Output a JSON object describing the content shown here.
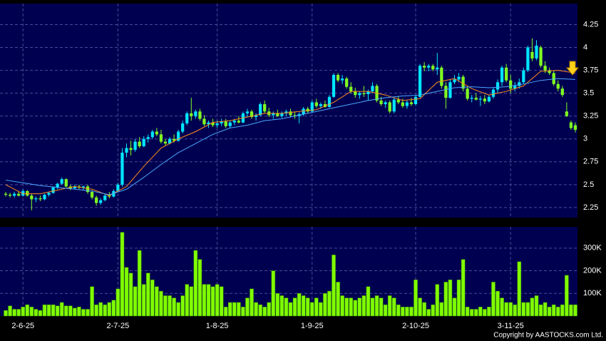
{
  "chart_data": {
    "type": "candlestick",
    "categories": [
      null,
      null,
      null,
      null,
      "2-6-25",
      null,
      null,
      null,
      null,
      null,
      null,
      null,
      null,
      null,
      null,
      null,
      null,
      null,
      null,
      null,
      null,
      null,
      null,
      null,
      null,
      null,
      "2-7-25",
      null,
      null,
      null,
      null,
      null,
      null,
      null,
      null,
      null,
      null,
      null,
      null,
      null,
      null,
      null,
      null,
      null,
      null,
      null,
      null,
      null,
      null,
      "1-8-25",
      null,
      null,
      null,
      null,
      null,
      null,
      null,
      null,
      null,
      null,
      null,
      null,
      null,
      null,
      null,
      null,
      null,
      null,
      null,
      null,
      null,
      "1-9-25",
      null,
      null,
      null,
      null,
      null,
      null,
      null,
      null,
      null,
      null,
      null,
      null,
      null,
      null,
      null,
      null,
      null,
      null,
      null,
      null,
      null,
      null,
      null,
      "2-10-25",
      null,
      null,
      null,
      null,
      null,
      null,
      null,
      null,
      null,
      null,
      null,
      null,
      null,
      null,
      null,
      null,
      null,
      null,
      null,
      null,
      null,
      "3-11-25",
      null,
      null,
      null,
      null,
      null,
      null,
      null,
      null,
      null,
      null,
      null,
      null,
      null,
      null,
      null
    ],
    "ohlc": [
      [
        2.4,
        2.42,
        2.37,
        2.39
      ],
      [
        2.39,
        2.41,
        2.36,
        2.38
      ],
      [
        2.38,
        2.42,
        2.36,
        2.4
      ],
      [
        2.4,
        2.43,
        2.37,
        2.38
      ],
      [
        2.38,
        2.45,
        2.37,
        2.43
      ],
      [
        2.43,
        2.44,
        2.37,
        2.38
      ],
      [
        2.38,
        2.4,
        2.22,
        2.34
      ],
      [
        2.34,
        2.37,
        2.31,
        2.35
      ],
      [
        2.35,
        2.38,
        2.32,
        2.34
      ],
      [
        2.34,
        2.4,
        2.33,
        2.39
      ],
      [
        2.39,
        2.42,
        2.37,
        2.41
      ],
      [
        2.41,
        2.48,
        2.4,
        2.47
      ],
      [
        2.47,
        2.52,
        2.45,
        2.51
      ],
      [
        2.51,
        2.58,
        2.5,
        2.56
      ],
      [
        2.56,
        2.57,
        2.47,
        2.48
      ],
      [
        2.48,
        2.5,
        2.44,
        2.46
      ],
      [
        2.46,
        2.5,
        2.45,
        2.48
      ],
      [
        2.48,
        2.5,
        2.45,
        2.47
      ],
      [
        2.47,
        2.49,
        2.44,
        2.48
      ],
      [
        2.48,
        2.5,
        2.4,
        2.42
      ],
      [
        2.42,
        2.44,
        2.34,
        2.36
      ],
      [
        2.36,
        2.38,
        2.27,
        2.3
      ],
      [
        2.3,
        2.35,
        2.28,
        2.33
      ],
      [
        2.33,
        2.4,
        2.32,
        2.38
      ],
      [
        2.38,
        2.42,
        2.35,
        2.37
      ],
      [
        2.37,
        2.45,
        2.36,
        2.43
      ],
      [
        2.43,
        2.52,
        2.42,
        2.5
      ],
      [
        2.5,
        2.9,
        2.48,
        2.85
      ],
      [
        2.85,
        2.95,
        2.8,
        2.9
      ],
      [
        2.9,
        2.98,
        2.82,
        2.88
      ],
      [
        2.88,
        3.0,
        2.86,
        2.97
      ],
      [
        2.97,
        3.02,
        2.9,
        2.92
      ],
      [
        2.92,
        3.03,
        2.91,
        3.0
      ],
      [
        3.0,
        3.05,
        2.96,
        3.02
      ],
      [
        3.02,
        3.1,
        3.0,
        3.08
      ],
      [
        3.08,
        3.12,
        3.03,
        3.05
      ],
      [
        3.05,
        3.1,
        2.95,
        2.97
      ],
      [
        2.97,
        3.0,
        2.93,
        2.95
      ],
      [
        2.95,
        3.02,
        2.94,
        3.0
      ],
      [
        3.0,
        3.05,
        2.96,
        2.98
      ],
      [
        2.98,
        3.1,
        2.97,
        3.08
      ],
      [
        3.08,
        3.2,
        3.06,
        3.17
      ],
      [
        3.17,
        3.3,
        3.15,
        3.28
      ],
      [
        3.28,
        3.45,
        3.2,
        3.25
      ],
      [
        3.25,
        3.32,
        3.22,
        3.3
      ],
      [
        3.3,
        3.33,
        3.2,
        3.22
      ],
      [
        3.22,
        3.26,
        3.14,
        3.16
      ],
      [
        3.16,
        3.2,
        3.12,
        3.18
      ],
      [
        3.18,
        3.22,
        3.13,
        3.15
      ],
      [
        3.15,
        3.2,
        3.12,
        3.17
      ],
      [
        3.17,
        3.22,
        3.14,
        3.19
      ],
      [
        3.19,
        3.22,
        3.12,
        3.14
      ],
      [
        3.14,
        3.2,
        3.12,
        3.18
      ],
      [
        3.18,
        3.22,
        3.15,
        3.2
      ],
      [
        3.2,
        3.25,
        3.17,
        3.18
      ],
      [
        3.18,
        3.3,
        3.17,
        3.28
      ],
      [
        3.28,
        3.33,
        3.24,
        3.3
      ],
      [
        3.3,
        3.32,
        3.22,
        3.24
      ],
      [
        3.24,
        3.28,
        3.2,
        3.26
      ],
      [
        3.26,
        3.4,
        3.25,
        3.38
      ],
      [
        3.38,
        3.42,
        3.28,
        3.3
      ],
      [
        3.3,
        3.34,
        3.24,
        3.26
      ],
      [
        3.26,
        3.3,
        3.22,
        3.28
      ],
      [
        3.28,
        3.32,
        3.24,
        3.25
      ],
      [
        3.25,
        3.3,
        3.23,
        3.28
      ],
      [
        3.28,
        3.32,
        3.25,
        3.3
      ],
      [
        3.3,
        3.33,
        3.24,
        3.26
      ],
      [
        3.26,
        3.3,
        3.22,
        3.25
      ],
      [
        3.25,
        3.29,
        3.17,
        3.27
      ],
      [
        3.27,
        3.35,
        3.25,
        3.33
      ],
      [
        3.33,
        3.35,
        3.28,
        3.3
      ],
      [
        3.3,
        3.42,
        3.29,
        3.4
      ],
      [
        3.4,
        3.44,
        3.34,
        3.36
      ],
      [
        3.36,
        3.4,
        3.33,
        3.38
      ],
      [
        3.38,
        3.42,
        3.34,
        3.35
      ],
      [
        3.35,
        3.48,
        3.34,
        3.46
      ],
      [
        3.46,
        3.72,
        3.45,
        3.7
      ],
      [
        3.7,
        3.72,
        3.62,
        3.64
      ],
      [
        3.64,
        3.7,
        3.6,
        3.66
      ],
      [
        3.66,
        3.68,
        3.55,
        3.57
      ],
      [
        3.57,
        3.62,
        3.5,
        3.52
      ],
      [
        3.52,
        3.56,
        3.45,
        3.48
      ],
      [
        3.48,
        3.52,
        3.44,
        3.5
      ],
      [
        3.5,
        3.58,
        3.46,
        3.49
      ],
      [
        3.49,
        3.54,
        3.42,
        3.52
      ],
      [
        3.52,
        3.62,
        3.5,
        3.58
      ],
      [
        3.58,
        3.6,
        3.4,
        3.42
      ],
      [
        3.42,
        3.46,
        3.36,
        3.38
      ],
      [
        3.38,
        3.42,
        3.34,
        3.4
      ],
      [
        3.4,
        3.42,
        3.28,
        3.3
      ],
      [
        3.3,
        3.45,
        3.28,
        3.43
      ],
      [
        3.43,
        3.47,
        3.38,
        3.4
      ],
      [
        3.4,
        3.44,
        3.34,
        3.36
      ],
      [
        3.36,
        3.42,
        3.33,
        3.4
      ],
      [
        3.4,
        3.45,
        3.36,
        3.38
      ],
      [
        3.38,
        3.48,
        3.37,
        3.46
      ],
      [
        3.46,
        3.82,
        3.45,
        3.8
      ],
      [
        3.8,
        3.84,
        3.74,
        3.78
      ],
      [
        3.78,
        3.82,
        3.74,
        3.8
      ],
      [
        3.8,
        3.82,
        3.74,
        3.76
      ],
      [
        3.76,
        3.94,
        3.7,
        3.78
      ],
      [
        3.78,
        3.8,
        3.55,
        3.58
      ],
      [
        3.58,
        3.62,
        3.33,
        3.45
      ],
      [
        3.45,
        3.65,
        3.44,
        3.62
      ],
      [
        3.62,
        3.7,
        3.6,
        3.65
      ],
      [
        3.65,
        3.72,
        3.62,
        3.68
      ],
      [
        3.68,
        3.7,
        3.52,
        3.55
      ],
      [
        3.55,
        3.58,
        3.42,
        3.44
      ],
      [
        3.44,
        3.48,
        3.4,
        3.45
      ],
      [
        3.45,
        3.5,
        3.42,
        3.43
      ],
      [
        3.43,
        3.47,
        3.36,
        3.44
      ],
      [
        3.44,
        3.48,
        3.38,
        3.41
      ],
      [
        3.41,
        3.48,
        3.4,
        3.46
      ],
      [
        3.46,
        3.56,
        3.44,
        3.54
      ],
      [
        3.54,
        3.65,
        3.5,
        3.62
      ],
      [
        3.62,
        3.8,
        3.58,
        3.78
      ],
      [
        3.78,
        3.82,
        3.62,
        3.64
      ],
      [
        3.64,
        3.7,
        3.5,
        3.55
      ],
      [
        3.55,
        3.62,
        3.52,
        3.58
      ],
      [
        3.58,
        3.66,
        3.55,
        3.62
      ],
      [
        3.62,
        3.78,
        3.6,
        3.75
      ],
      [
        3.75,
        4.02,
        3.73,
        4.0
      ],
      [
        3.95,
        4.1,
        3.85,
        3.88
      ],
      [
        3.88,
        4.08,
        3.86,
        4.02
      ],
      [
        4.0,
        4.02,
        3.78,
        3.8
      ],
      [
        3.8,
        3.85,
        3.72,
        3.75
      ],
      [
        3.75,
        3.78,
        3.7,
        3.72
      ],
      [
        3.72,
        3.75,
        3.58,
        3.6
      ],
      [
        3.6,
        3.64,
        3.52,
        3.55
      ],
      [
        3.55,
        3.58,
        3.46,
        3.48
      ],
      [
        3.3,
        3.4,
        3.24,
        3.25
      ],
      [
        3.18,
        3.2,
        3.1,
        3.12
      ],
      [
        3.15,
        3.18,
        3.07,
        3.1
      ]
    ],
    "up_color": "#00e5ff",
    "down_color": "#80ff20",
    "ylim": [
      2.14,
      4.48
    ],
    "yticks": [
      2.25,
      2.5,
      2.75,
      3,
      3.25,
      3.5,
      3.75,
      4,
      4.25
    ],
    "grid": true,
    "lines": [
      {
        "color": "#ff8c1a",
        "x": [
          0,
          4,
          8,
          12,
          16,
          20,
          24,
          28,
          32,
          36,
          40,
          44,
          48,
          52,
          56,
          60,
          64,
          68,
          72,
          76,
          80,
          84,
          88,
          92,
          96,
          100,
          104,
          108,
          112,
          116,
          120,
          124,
          128,
          132
        ],
        "values": [
          2.5,
          2.4,
          2.4,
          2.44,
          2.48,
          2.45,
          2.38,
          2.48,
          2.7,
          2.9,
          3.0,
          3.08,
          3.18,
          3.2,
          3.24,
          3.28,
          3.28,
          3.3,
          3.32,
          3.4,
          3.52,
          3.52,
          3.48,
          3.42,
          3.44,
          3.62,
          3.66,
          3.55,
          3.48,
          3.52,
          3.58,
          3.74,
          3.75,
          3.72
        ]
      },
      {
        "color": "#4aa8ff",
        "x": [
          0,
          4,
          8,
          12,
          16,
          20,
          24,
          28,
          32,
          36,
          40,
          44,
          48,
          52,
          56,
          60,
          64,
          68,
          72,
          76,
          80,
          84,
          88,
          92,
          96,
          100,
          104,
          108,
          112,
          116,
          120,
          124,
          128,
          132
        ],
        "values": [
          2.55,
          2.52,
          2.49,
          2.47,
          2.45,
          2.43,
          2.39,
          2.45,
          2.58,
          2.72,
          2.85,
          2.95,
          3.05,
          3.12,
          3.15,
          3.2,
          3.22,
          3.26,
          3.3,
          3.34,
          3.38,
          3.42,
          3.45,
          3.47,
          3.48,
          3.52,
          3.56,
          3.57,
          3.56,
          3.57,
          3.6,
          3.64,
          3.66,
          3.65
        ]
      }
    ],
    "volume": {
      "color": "#80ff00",
      "ylim": [
        0,
        394000
      ],
      "yticks": [
        {
          "value": 100000,
          "label": "100K"
        },
        {
          "value": 200000,
          "label": "200K"
        },
        {
          "value": 300000,
          "label": "300K"
        }
      ],
      "values": [
        25000,
        45000,
        30000,
        30000,
        40000,
        50000,
        40000,
        30000,
        25000,
        50000,
        50000,
        50000,
        45000,
        60000,
        45000,
        45000,
        35000,
        40000,
        30000,
        30000,
        130000,
        50000,
        60000,
        50000,
        60000,
        70000,
        120000,
        370000,
        215000,
        190000,
        130000,
        290000,
        140000,
        190000,
        160000,
        130000,
        110000,
        90000,
        90000,
        80000,
        60000,
        90000,
        140000,
        130000,
        290000,
        250000,
        140000,
        140000,
        130000,
        140000,
        130000,
        40000,
        60000,
        60000,
        60000,
        40000,
        80000,
        120000,
        60000,
        50000,
        40000,
        60000,
        200000,
        100000,
        90000,
        80000,
        60000,
        80000,
        100000,
        90000,
        80000,
        60000,
        80000,
        60000,
        100000,
        110000,
        270000,
        150000,
        90000,
        80000,
        80000,
        70000,
        80000,
        90000,
        130000,
        80000,
        90000,
        80000,
        50000,
        90000,
        80000,
        50000,
        40000,
        40000,
        40000,
        160000,
        80000,
        60000,
        30000,
        50000,
        140000,
        60000,
        150000,
        160000,
        80000,
        160000,
        250000,
        40000,
        30000,
        30000,
        40000,
        30000,
        40000,
        150000,
        110000,
        80000,
        60000,
        60000,
        50000,
        240000,
        60000,
        60000,
        80000,
        90000,
        50000,
        60000,
        40000,
        50000,
        40000,
        50000,
        180000,
        50000,
        50000
      ]
    },
    "copyright": "Copyright by AASTOCKS.com Ltd."
  }
}
